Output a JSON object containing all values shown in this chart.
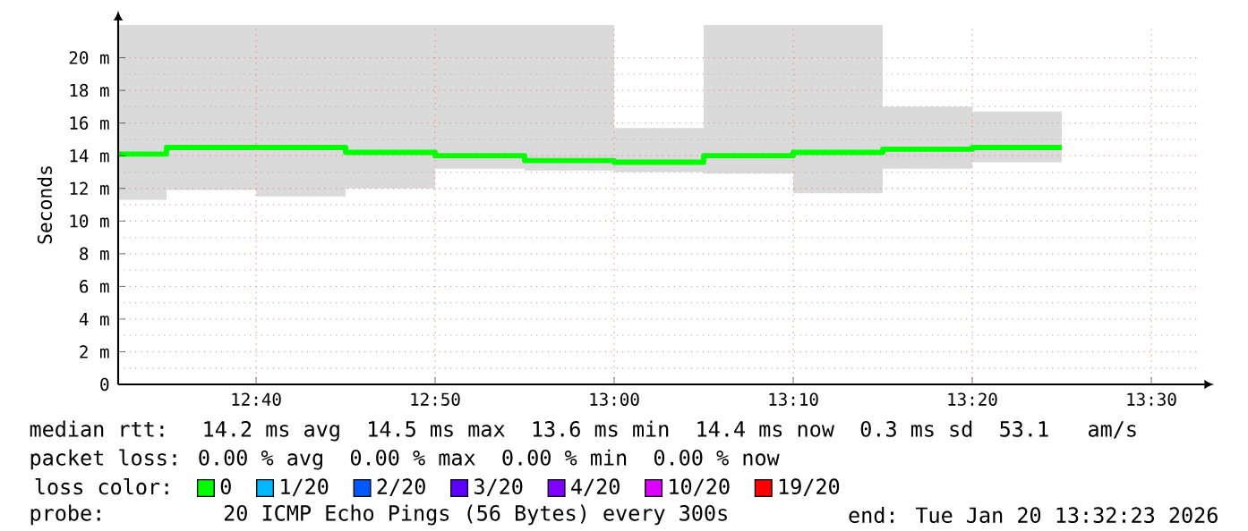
{
  "chart_data": {
    "type": "step",
    "ylabel": "Seconds",
    "legend_title": "loss color:",
    "legend": "bottom",
    "grid": true,
    "x": [
      12.5383,
      12.5833,
      12.6667,
      12.75,
      12.8333,
      12.9167,
      13.0,
      13.0833,
      13.1667,
      13.25,
      13.3333,
      13.4167
    ],
    "xlim": [
      12.5383,
      13.545
    ],
    "xticks": [
      {
        "value": 12.6667,
        "label": "12:40"
      },
      {
        "value": 12.8333,
        "label": "12:50"
      },
      {
        "value": 13.0,
        "label": "13:00"
      },
      {
        "value": 13.1667,
        "label": "13:10"
      },
      {
        "value": 13.3333,
        "label": "13:20"
      },
      {
        "value": 13.5,
        "label": "13:30"
      }
    ],
    "ylim": [
      0,
      22
    ],
    "yticks": [
      {
        "value": 0,
        "label": "0"
      },
      {
        "value": 2,
        "label": "2 m"
      },
      {
        "value": 4,
        "label": "4 m"
      },
      {
        "value": 6,
        "label": "6 m"
      },
      {
        "value": 8,
        "label": "8 m"
      },
      {
        "value": 10,
        "label": "10 m"
      },
      {
        "value": 12,
        "label": "12 m"
      },
      {
        "value": 14,
        "label": "14 m"
      },
      {
        "value": 16,
        "label": "16 m"
      },
      {
        "value": 18,
        "label": "18 m"
      },
      {
        "value": 20,
        "label": "20 m"
      }
    ],
    "series": [
      {
        "name": "0",
        "color": "#00ff00",
        "values": [
          14.1,
          14.5,
          14.5,
          14.2,
          14.0,
          13.7,
          13.6,
          14.0,
          14.2,
          14.4,
          14.5,
          14.5
        ],
        "lower": [
          11.3,
          11.9,
          11.5,
          12.0,
          13.2,
          13.1,
          13.0,
          12.9,
          11.7,
          13.2,
          13.6,
          13.6
        ],
        "upper": [
          22,
          22,
          22,
          22,
          22,
          22,
          15.7,
          22,
          22,
          17.0,
          16.7,
          16.7
        ]
      },
      {
        "name": "1/20",
        "color": "#00b8ff",
        "values": [
          null,
          null,
          null,
          null,
          null,
          null,
          null,
          null,
          null,
          null,
          null,
          null
        ]
      },
      {
        "name": "2/20",
        "color": "#0059ff",
        "values": [
          null,
          null,
          null,
          null,
          null,
          null,
          null,
          null,
          null,
          null,
          null,
          null
        ]
      },
      {
        "name": "3/20",
        "color": "#5e00ff",
        "values": [
          null,
          null,
          null,
          null,
          null,
          null,
          null,
          null,
          null,
          null,
          null,
          null
        ]
      },
      {
        "name": "4/20",
        "color": "#7e00ff",
        "values": [
          null,
          null,
          null,
          null,
          null,
          null,
          null,
          null,
          null,
          null,
          null,
          null
        ]
      },
      {
        "name": "10/20",
        "color": "#dd00ff",
        "values": [
          null,
          null,
          null,
          null,
          null,
          null,
          null,
          null,
          null,
          null,
          null,
          null
        ]
      },
      {
        "name": "19/20",
        "color": "#ff0000",
        "values": [
          null,
          null,
          null,
          null,
          null,
          null,
          null,
          null,
          null,
          null,
          null,
          null
        ]
      }
    ],
    "annotations": [
      "median rtt:  14.2 ms avg  14.5 ms max  13.6 ms min  14.4 ms now  0.3 ms sd  53.1   am/s",
      "packet loss: 0.00 % avg  0.00 % max  0.00 % min  0.00 % now",
      "probe:       20 ICMP Echo Pings (56 Bytes) every 300s",
      "end: Tue Jan 20 13:32:23 2026"
    ]
  }
}
